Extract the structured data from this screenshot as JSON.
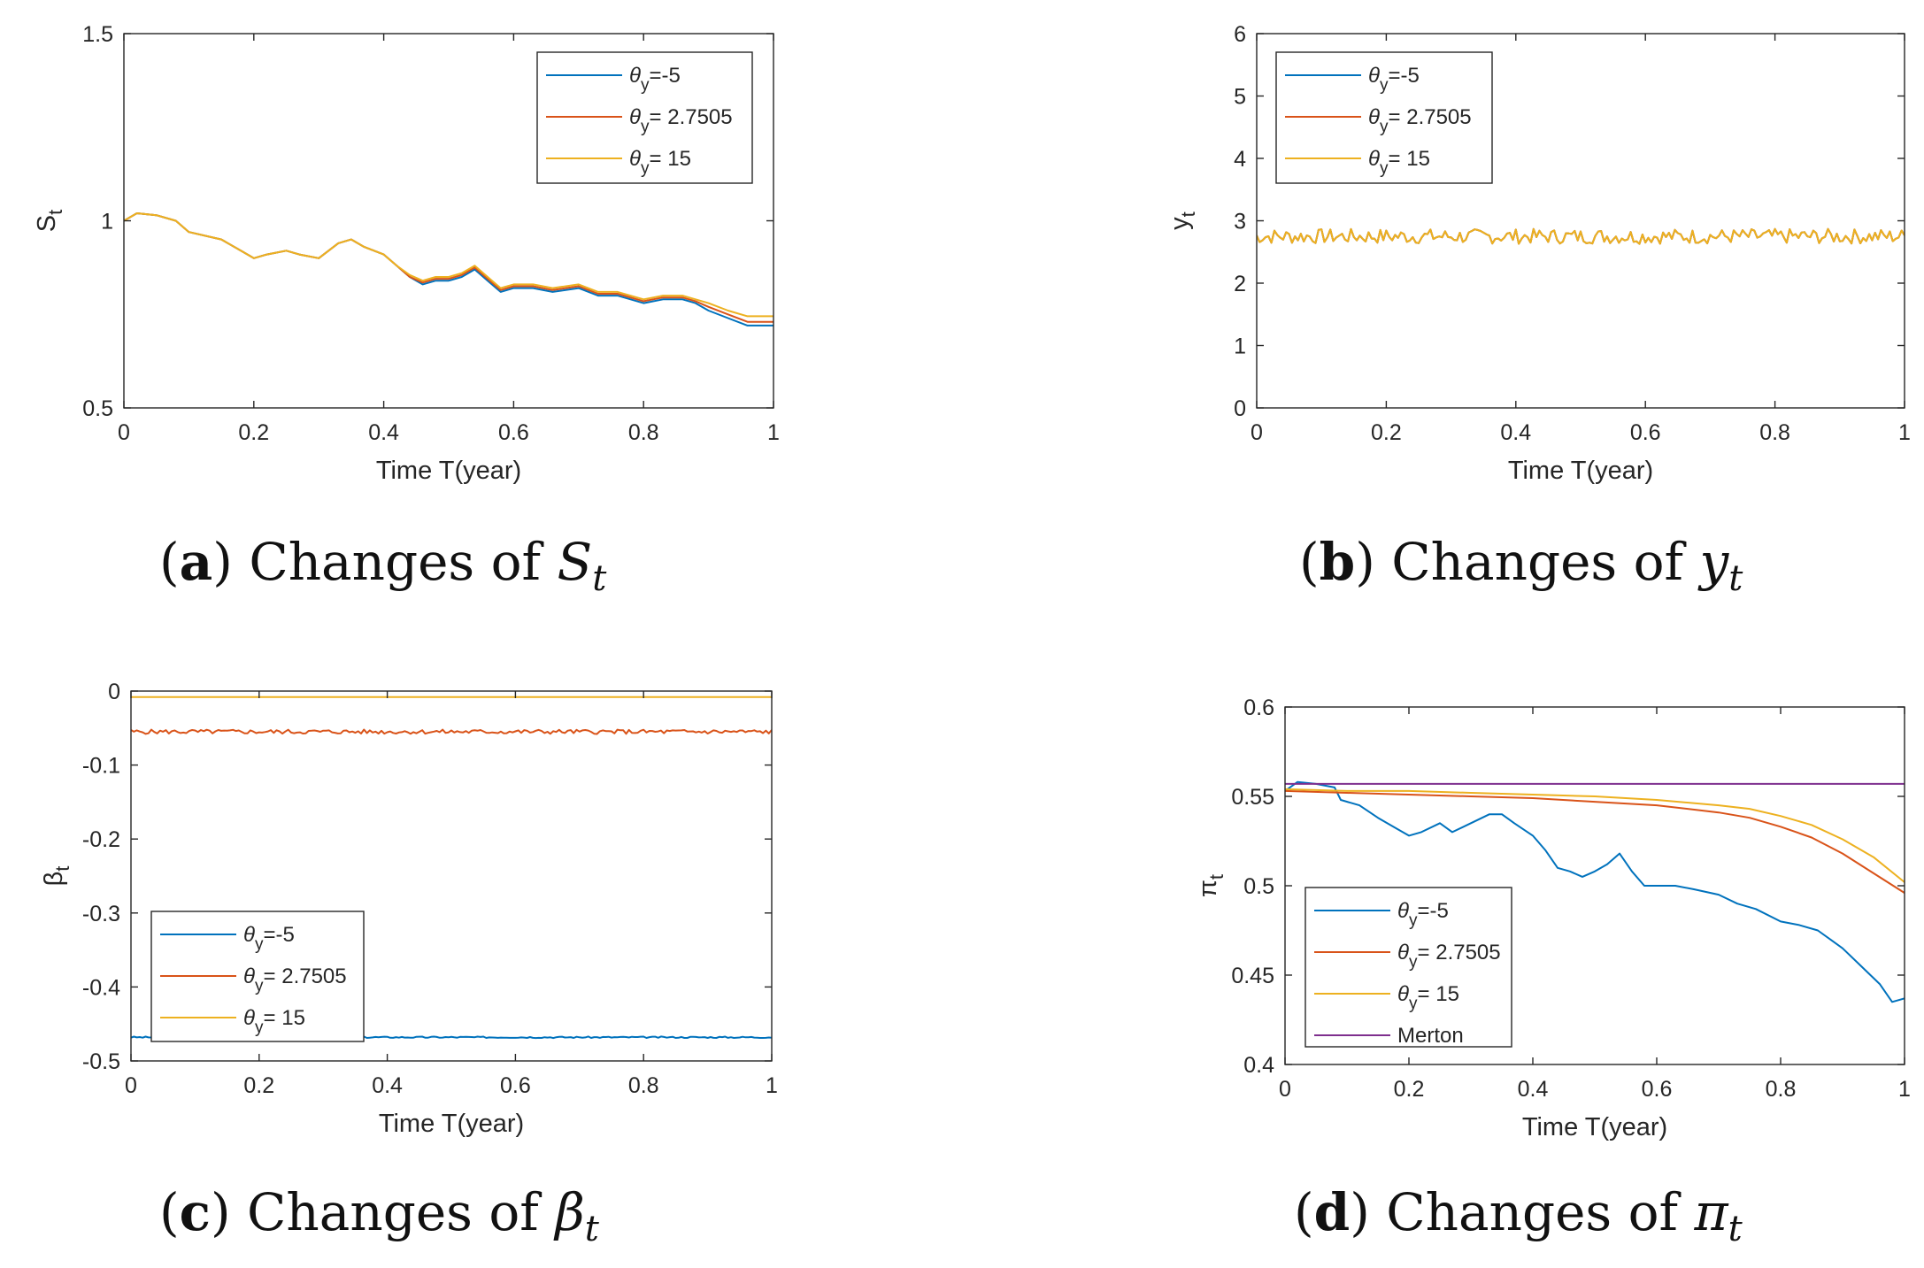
{
  "chart_data": [
    {
      "id": "a",
      "type": "line",
      "ylabel_main": "S",
      "ylabel_sub": "t",
      "xlabel": "Time T(year)",
      "xlim": [
        0,
        1
      ],
      "ylim": [
        0.5,
        1.5
      ],
      "xticks": [
        "0",
        "0.2",
        "0.4",
        "0.6",
        "0.8",
        "1"
      ],
      "yticks": [
        "0.5",
        "1",
        "1.5"
      ],
      "ytick_values": [
        0.5,
        1,
        1.5
      ],
      "legend_position": "top-right",
      "caption": {
        "letter": "a",
        "text": "Changes of",
        "symbol": "S",
        "sub": "t"
      },
      "series": [
        {
          "name_symbol": "θ",
          "name_sub": "y",
          "name_value": "=-5",
          "color": "#0072BD",
          "points": [
            [
              0,
              1.0
            ],
            [
              0.02,
              1.02
            ],
            [
              0.05,
              1.015
            ],
            [
              0.08,
              1.0
            ],
            [
              0.1,
              0.97
            ],
            [
              0.15,
              0.95
            ],
            [
              0.18,
              0.92
            ],
            [
              0.2,
              0.9
            ],
            [
              0.22,
              0.91
            ],
            [
              0.25,
              0.92
            ],
            [
              0.27,
              0.91
            ],
            [
              0.3,
              0.9
            ],
            [
              0.33,
              0.94
            ],
            [
              0.35,
              0.95
            ],
            [
              0.37,
              0.93
            ],
            [
              0.4,
              0.91
            ],
            [
              0.42,
              0.88
            ],
            [
              0.44,
              0.85
            ],
            [
              0.46,
              0.83
            ],
            [
              0.48,
              0.84
            ],
            [
              0.5,
              0.84
            ],
            [
              0.52,
              0.85
            ],
            [
              0.54,
              0.87
            ],
            [
              0.56,
              0.84
            ],
            [
              0.58,
              0.81
            ],
            [
              0.6,
              0.82
            ],
            [
              0.63,
              0.82
            ],
            [
              0.66,
              0.81
            ],
            [
              0.7,
              0.82
            ],
            [
              0.73,
              0.8
            ],
            [
              0.76,
              0.8
            ],
            [
              0.8,
              0.78
            ],
            [
              0.83,
              0.79
            ],
            [
              0.86,
              0.79
            ],
            [
              0.88,
              0.78
            ],
            [
              0.9,
              0.76
            ],
            [
              0.93,
              0.74
            ],
            [
              0.96,
              0.72
            ],
            [
              1.0,
              0.72
            ]
          ]
        },
        {
          "name_symbol": "θ",
          "name_sub": "y",
          "name_value": "= 2.7505",
          "color": "#D95319",
          "points": [
            [
              0,
              1.0
            ],
            [
              0.02,
              1.02
            ],
            [
              0.05,
              1.015
            ],
            [
              0.08,
              1.0
            ],
            [
              0.1,
              0.97
            ],
            [
              0.15,
              0.95
            ],
            [
              0.18,
              0.92
            ],
            [
              0.2,
              0.9
            ],
            [
              0.22,
              0.91
            ],
            [
              0.25,
              0.92
            ],
            [
              0.27,
              0.91
            ],
            [
              0.3,
              0.9
            ],
            [
              0.33,
              0.94
            ],
            [
              0.35,
              0.95
            ],
            [
              0.37,
              0.93
            ],
            [
              0.4,
              0.91
            ],
            [
              0.42,
              0.88
            ],
            [
              0.44,
              0.85
            ],
            [
              0.46,
              0.835
            ],
            [
              0.48,
              0.845
            ],
            [
              0.5,
              0.845
            ],
            [
              0.52,
              0.855
            ],
            [
              0.54,
              0.875
            ],
            [
              0.56,
              0.845
            ],
            [
              0.58,
              0.815
            ],
            [
              0.6,
              0.825
            ],
            [
              0.63,
              0.825
            ],
            [
              0.66,
              0.815
            ],
            [
              0.7,
              0.825
            ],
            [
              0.73,
              0.805
            ],
            [
              0.76,
              0.805
            ],
            [
              0.8,
              0.785
            ],
            [
              0.83,
              0.795
            ],
            [
              0.86,
              0.795
            ],
            [
              0.88,
              0.785
            ],
            [
              0.9,
              0.77
            ],
            [
              0.93,
              0.75
            ],
            [
              0.96,
              0.73
            ],
            [
              1.0,
              0.73
            ]
          ]
        },
        {
          "name_symbol": "θ",
          "name_sub": "y",
          "name_value": "= 15",
          "color": "#EDB120",
          "points": [
            [
              0,
              1.0
            ],
            [
              0.02,
              1.02
            ],
            [
              0.05,
              1.015
            ],
            [
              0.08,
              1.0
            ],
            [
              0.1,
              0.97
            ],
            [
              0.15,
              0.95
            ],
            [
              0.18,
              0.92
            ],
            [
              0.2,
              0.9
            ],
            [
              0.22,
              0.91
            ],
            [
              0.25,
              0.92
            ],
            [
              0.27,
              0.91
            ],
            [
              0.3,
              0.9
            ],
            [
              0.33,
              0.94
            ],
            [
              0.35,
              0.95
            ],
            [
              0.37,
              0.93
            ],
            [
              0.4,
              0.91
            ],
            [
              0.42,
              0.88
            ],
            [
              0.44,
              0.855
            ],
            [
              0.46,
              0.84
            ],
            [
              0.48,
              0.85
            ],
            [
              0.5,
              0.85
            ],
            [
              0.52,
              0.86
            ],
            [
              0.54,
              0.88
            ],
            [
              0.56,
              0.85
            ],
            [
              0.58,
              0.82
            ],
            [
              0.6,
              0.83
            ],
            [
              0.63,
              0.83
            ],
            [
              0.66,
              0.82
            ],
            [
              0.7,
              0.83
            ],
            [
              0.73,
              0.81
            ],
            [
              0.76,
              0.81
            ],
            [
              0.8,
              0.79
            ],
            [
              0.83,
              0.8
            ],
            [
              0.86,
              0.8
            ],
            [
              0.88,
              0.79
            ],
            [
              0.9,
              0.78
            ],
            [
              0.93,
              0.76
            ],
            [
              0.96,
              0.745
            ],
            [
              1.0,
              0.745
            ]
          ]
        }
      ]
    },
    {
      "id": "b",
      "type": "line",
      "ylabel_main": "y",
      "ylabel_sub": "t",
      "xlabel": "Time T(year)",
      "xlim": [
        0,
        1
      ],
      "ylim": [
        0,
        6
      ],
      "xticks": [
        "0",
        "0.2",
        "0.4",
        "0.6",
        "0.8",
        "1"
      ],
      "yticks": [
        "0",
        "1",
        "2",
        "3",
        "4",
        "5",
        "6"
      ],
      "ytick_values": [
        0,
        1,
        2,
        3,
        4,
        5,
        6
      ],
      "legend_position": "top-left",
      "caption": {
        "letter": "b",
        "text": "Changes of",
        "symbol": "y",
        "sub": "t"
      },
      "series": [
        {
          "name_symbol": "θ",
          "name_sub": "y",
          "name_value": "=-5",
          "color": "#0072BD",
          "noise": {
            "mean": 2.75,
            "amplitude": 0.12,
            "seed": 7
          }
        },
        {
          "name_symbol": "θ",
          "name_sub": "y",
          "name_value": "= 2.7505",
          "color": "#D95319",
          "noise": {
            "mean": 2.75,
            "amplitude": 0.12,
            "seed": 7
          }
        },
        {
          "name_symbol": "θ",
          "name_sub": "y",
          "name_value": "= 15",
          "color": "#EDB120",
          "noise": {
            "mean": 2.75,
            "amplitude": 0.12,
            "seed": 7
          }
        }
      ]
    },
    {
      "id": "c",
      "type": "line",
      "ylabel_main": "β",
      "ylabel_sub": "t",
      "xlabel": "Time T(year)",
      "xlim": [
        0,
        1
      ],
      "ylim": [
        -0.5,
        0
      ],
      "xticks": [
        "0",
        "0.2",
        "0.4",
        "0.6",
        "0.8",
        "1"
      ],
      "yticks": [
        "-0.5",
        "-0.4",
        "-0.3",
        "-0.2",
        "-0.1",
        "0"
      ],
      "ytick_values": [
        -0.5,
        -0.4,
        -0.3,
        -0.2,
        -0.1,
        0
      ],
      "legend_position": "bottom-left",
      "caption": {
        "letter": "c",
        "text": "Changes of",
        "symbol": "β",
        "sub": "t"
      },
      "series": [
        {
          "name_symbol": "θ",
          "name_sub": "y",
          "name_value": "=-5",
          "color": "#0072BD",
          "noise": {
            "mean": -0.468,
            "amplitude": 0.001,
            "seed": 3
          }
        },
        {
          "name_symbol": "θ",
          "name_sub": "y",
          "name_value": "= 2.7505",
          "color": "#D95319",
          "noise": {
            "mean": -0.055,
            "amplitude": 0.003,
            "seed": 5
          }
        },
        {
          "name_symbol": "θ",
          "name_sub": "y",
          "name_value": "= 15",
          "color": "#EDB120",
          "noise": {
            "mean": -0.008,
            "amplitude": 0.0,
            "seed": 1
          }
        }
      ]
    },
    {
      "id": "d",
      "type": "line",
      "ylabel_main": "π",
      "ylabel_sub": "t",
      "xlabel": "Time T(year)",
      "xlim": [
        0,
        1
      ],
      "ylim": [
        0.4,
        0.6
      ],
      "xticks": [
        "0",
        "0.2",
        "0.4",
        "0.6",
        "0.8",
        "1"
      ],
      "yticks": [
        "0.4",
        "0.45",
        "0.5",
        "0.55",
        "0.6"
      ],
      "ytick_values": [
        0.4,
        0.45,
        0.5,
        0.55,
        0.6
      ],
      "legend_position": "bottom-left",
      "caption": {
        "letter": "d",
        "text": "Changes of",
        "symbol": "π",
        "sub": "t"
      },
      "series": [
        {
          "name_symbol": "θ",
          "name_sub": "y",
          "name_value": "=-5",
          "color": "#0072BD",
          "points": [
            [
              0,
              0.553
            ],
            [
              0.02,
              0.558
            ],
            [
              0.05,
              0.557
            ],
            [
              0.08,
              0.555
            ],
            [
              0.09,
              0.548
            ],
            [
              0.12,
              0.545
            ],
            [
              0.15,
              0.538
            ],
            [
              0.18,
              0.532
            ],
            [
              0.2,
              0.528
            ],
            [
              0.22,
              0.53
            ],
            [
              0.25,
              0.535
            ],
            [
              0.27,
              0.53
            ],
            [
              0.3,
              0.535
            ],
            [
              0.33,
              0.54
            ],
            [
              0.35,
              0.54
            ],
            [
              0.37,
              0.535
            ],
            [
              0.4,
              0.528
            ],
            [
              0.42,
              0.52
            ],
            [
              0.44,
              0.51
            ],
            [
              0.46,
              0.508
            ],
            [
              0.48,
              0.505
            ],
            [
              0.5,
              0.508
            ],
            [
              0.52,
              0.512
            ],
            [
              0.54,
              0.518
            ],
            [
              0.56,
              0.508
            ],
            [
              0.58,
              0.5
            ],
            [
              0.6,
              0.5
            ],
            [
              0.63,
              0.5
            ],
            [
              0.66,
              0.498
            ],
            [
              0.7,
              0.495
            ],
            [
              0.73,
              0.49
            ],
            [
              0.76,
              0.487
            ],
            [
              0.8,
              0.48
            ],
            [
              0.83,
              0.478
            ],
            [
              0.86,
              0.475
            ],
            [
              0.88,
              0.47
            ],
            [
              0.9,
              0.465
            ],
            [
              0.93,
              0.455
            ],
            [
              0.96,
              0.445
            ],
            [
              0.98,
              0.435
            ],
            [
              1.0,
              0.437
            ]
          ]
        },
        {
          "name_symbol": "θ",
          "name_sub": "y",
          "name_value": "= 2.7505",
          "color": "#D95319",
          "points": [
            [
              0,
              0.553
            ],
            [
              0.1,
              0.552
            ],
            [
              0.2,
              0.551
            ],
            [
              0.3,
              0.55
            ],
            [
              0.4,
              0.549
            ],
            [
              0.5,
              0.547
            ],
            [
              0.6,
              0.545
            ],
            [
              0.7,
              0.541
            ],
            [
              0.75,
              0.538
            ],
            [
              0.8,
              0.533
            ],
            [
              0.85,
              0.527
            ],
            [
              0.9,
              0.518
            ],
            [
              0.95,
              0.507
            ],
            [
              1.0,
              0.496
            ]
          ]
        },
        {
          "name_symbol": "θ",
          "name_sub": "y",
          "name_value": "= 15",
          "color": "#EDB120",
          "points": [
            [
              0,
              0.554
            ],
            [
              0.1,
              0.553
            ],
            [
              0.2,
              0.553
            ],
            [
              0.3,
              0.552
            ],
            [
              0.4,
              0.551
            ],
            [
              0.5,
              0.55
            ],
            [
              0.6,
              0.548
            ],
            [
              0.7,
              0.545
            ],
            [
              0.75,
              0.543
            ],
            [
              0.8,
              0.539
            ],
            [
              0.85,
              0.534
            ],
            [
              0.9,
              0.526
            ],
            [
              0.95,
              0.516
            ],
            [
              1.0,
              0.502
            ]
          ]
        },
        {
          "name_symbol": "",
          "name_sub": "",
          "name_value": "Merton",
          "color": "#7E2F8E",
          "points": [
            [
              0,
              0.557
            ],
            [
              1.0,
              0.557
            ]
          ]
        }
      ]
    }
  ]
}
